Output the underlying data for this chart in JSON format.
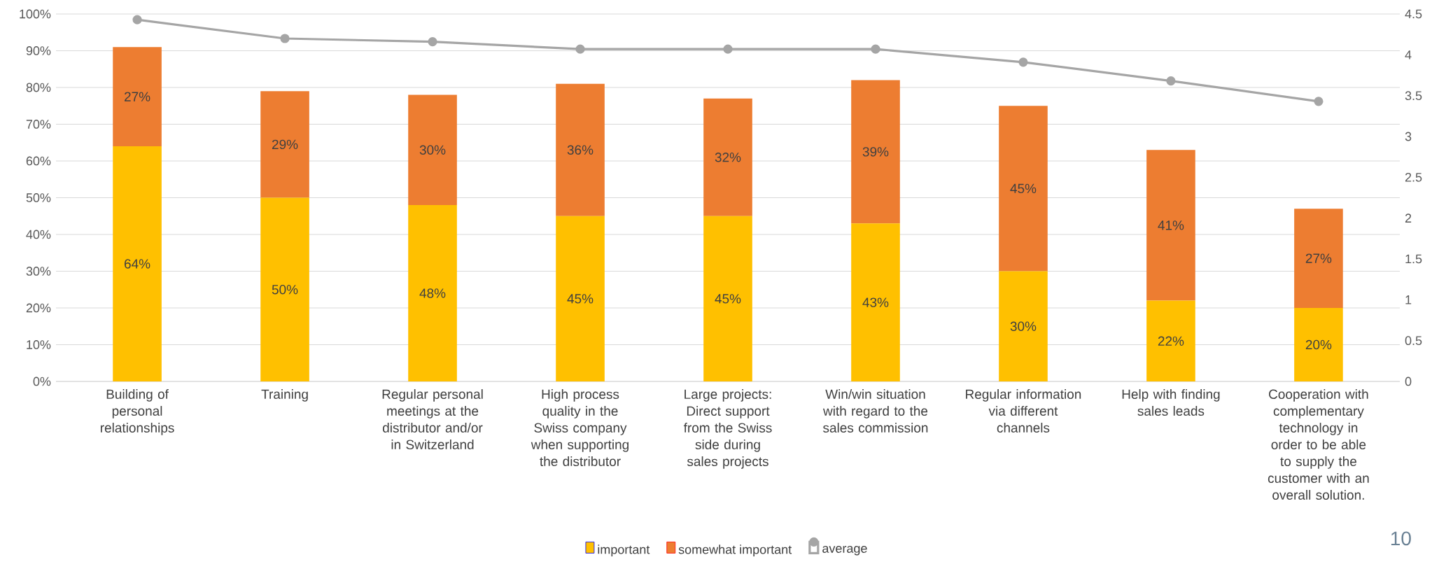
{
  "chart_data": {
    "type": "bar",
    "stacked": true,
    "categories": [
      "Building of personal relationships",
      "Training",
      "Regular personal meetings at the distributor and/or in Switzerland",
      "High process quality in the Swiss company when supporting the distributor",
      "Large projects: Direct support from the Swiss side during sales projects",
      "Win/win situation with regard to the sales commission",
      "Regular information via different channels",
      "Help with finding sales leads",
      "Cooperation with complementary technology in order to be able to supply the customer with an overall solution."
    ],
    "series": [
      {
        "name": "important",
        "color": "#ffc000",
        "values": [
          64,
          50,
          48,
          45,
          45,
          43,
          30,
          22,
          20
        ],
        "value_labels": [
          "64%",
          "50%",
          "48%",
          "45%",
          "45%",
          "43%",
          "30%",
          "22%",
          "20%"
        ]
      },
      {
        "name": "somewhat important",
        "color": "#ed7d31",
        "values": [
          27,
          29,
          30,
          36,
          32,
          39,
          45,
          41,
          27
        ],
        "value_labels": [
          "27%",
          "29%",
          "30%",
          "36%",
          "32%",
          "39%",
          "45%",
          "41%",
          "27%"
        ]
      },
      {
        "name": "average",
        "type": "line",
        "axis": "y2",
        "color": "#a5a5a5",
        "marker": "circle",
        "values": [
          4.43,
          4.2,
          4.16,
          4.07,
          4.07,
          4.07,
          3.91,
          3.68,
          3.43
        ]
      }
    ],
    "ylim": [
      0,
      100
    ],
    "yticks": [
      {
        "value": 0,
        "label": "0%"
      },
      {
        "value": 10,
        "label": "10%"
      },
      {
        "value": 20,
        "label": "20%"
      },
      {
        "value": 30,
        "label": "30%"
      },
      {
        "value": 40,
        "label": "40%"
      },
      {
        "value": 50,
        "label": "50%"
      },
      {
        "value": 60,
        "label": "60%"
      },
      {
        "value": 70,
        "label": "70%"
      },
      {
        "value": 80,
        "label": "80%"
      },
      {
        "value": 90,
        "label": "90%"
      },
      {
        "value": 100,
        "label": "100%"
      }
    ],
    "y2lim": [
      0,
      4.5
    ],
    "y2ticks": [
      0,
      0.5,
      1,
      1.5,
      2,
      2.5,
      3,
      3.5,
      4,
      4.5
    ],
    "grid": "y",
    "legend": "bottom",
    "annotations": [
      "10"
    ]
  }
}
